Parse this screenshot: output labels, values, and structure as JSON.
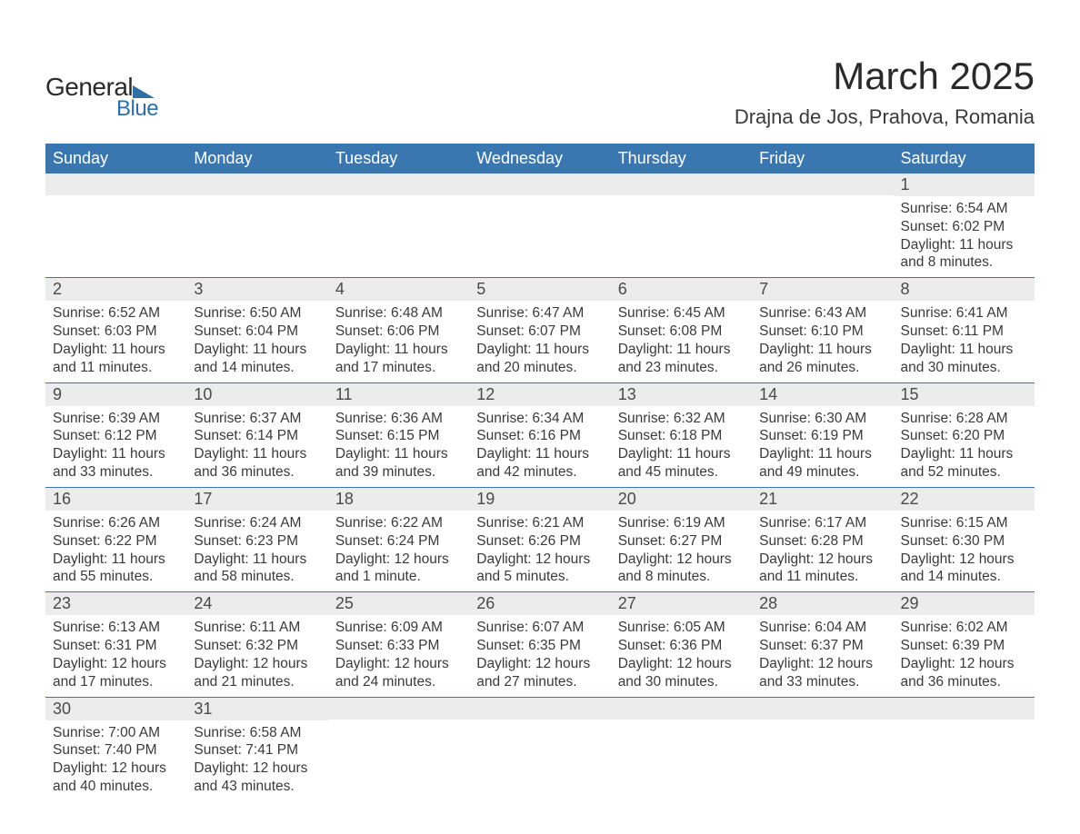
{
  "brand": {
    "text1": "General",
    "text2": "Blue",
    "accent_color": "#2f6fa8"
  },
  "title": "March 2025",
  "location": "Drajna de Jos, Prahova, Romania",
  "header_bg": "#3a77b0",
  "daynum_bg": "#ececec",
  "text_color": "#3a3a3a",
  "columns": [
    "Sunday",
    "Monday",
    "Tuesday",
    "Wednesday",
    "Thursday",
    "Friday",
    "Saturday"
  ],
  "weeks": [
    [
      {
        "n": "",
        "lines": []
      },
      {
        "n": "",
        "lines": []
      },
      {
        "n": "",
        "lines": []
      },
      {
        "n": "",
        "lines": []
      },
      {
        "n": "",
        "lines": []
      },
      {
        "n": "",
        "lines": []
      },
      {
        "n": "1",
        "lines": [
          "Sunrise: 6:54 AM",
          "Sunset: 6:02 PM",
          "Daylight: 11 hours and 8 minutes."
        ]
      }
    ],
    [
      {
        "n": "2",
        "lines": [
          "Sunrise: 6:52 AM",
          "Sunset: 6:03 PM",
          "Daylight: 11 hours and 11 minutes."
        ]
      },
      {
        "n": "3",
        "lines": [
          "Sunrise: 6:50 AM",
          "Sunset: 6:04 PM",
          "Daylight: 11 hours and 14 minutes."
        ]
      },
      {
        "n": "4",
        "lines": [
          "Sunrise: 6:48 AM",
          "Sunset: 6:06 PM",
          "Daylight: 11 hours and 17 minutes."
        ]
      },
      {
        "n": "5",
        "lines": [
          "Sunrise: 6:47 AM",
          "Sunset: 6:07 PM",
          "Daylight: 11 hours and 20 minutes."
        ]
      },
      {
        "n": "6",
        "lines": [
          "Sunrise: 6:45 AM",
          "Sunset: 6:08 PM",
          "Daylight: 11 hours and 23 minutes."
        ]
      },
      {
        "n": "7",
        "lines": [
          "Sunrise: 6:43 AM",
          "Sunset: 6:10 PM",
          "Daylight: 11 hours and 26 minutes."
        ]
      },
      {
        "n": "8",
        "lines": [
          "Sunrise: 6:41 AM",
          "Sunset: 6:11 PM",
          "Daylight: 11 hours and 30 minutes."
        ]
      }
    ],
    [
      {
        "n": "9",
        "lines": [
          "Sunrise: 6:39 AM",
          "Sunset: 6:12 PM",
          "Daylight: 11 hours and 33 minutes."
        ]
      },
      {
        "n": "10",
        "lines": [
          "Sunrise: 6:37 AM",
          "Sunset: 6:14 PM",
          "Daylight: 11 hours and 36 minutes."
        ]
      },
      {
        "n": "11",
        "lines": [
          "Sunrise: 6:36 AM",
          "Sunset: 6:15 PM",
          "Daylight: 11 hours and 39 minutes."
        ]
      },
      {
        "n": "12",
        "lines": [
          "Sunrise: 6:34 AM",
          "Sunset: 6:16 PM",
          "Daylight: 11 hours and 42 minutes."
        ]
      },
      {
        "n": "13",
        "lines": [
          "Sunrise: 6:32 AM",
          "Sunset: 6:18 PM",
          "Daylight: 11 hours and 45 minutes."
        ]
      },
      {
        "n": "14",
        "lines": [
          "Sunrise: 6:30 AM",
          "Sunset: 6:19 PM",
          "Daylight: 11 hours and 49 minutes."
        ]
      },
      {
        "n": "15",
        "lines": [
          "Sunrise: 6:28 AM",
          "Sunset: 6:20 PM",
          "Daylight: 11 hours and 52 minutes."
        ]
      }
    ],
    [
      {
        "n": "16",
        "lines": [
          "Sunrise: 6:26 AM",
          "Sunset: 6:22 PM",
          "Daylight: 11 hours and 55 minutes."
        ]
      },
      {
        "n": "17",
        "lines": [
          "Sunrise: 6:24 AM",
          "Sunset: 6:23 PM",
          "Daylight: 11 hours and 58 minutes."
        ]
      },
      {
        "n": "18",
        "lines": [
          "Sunrise: 6:22 AM",
          "Sunset: 6:24 PM",
          "Daylight: 12 hours and 1 minute."
        ]
      },
      {
        "n": "19",
        "lines": [
          "Sunrise: 6:21 AM",
          "Sunset: 6:26 PM",
          "Daylight: 12 hours and 5 minutes."
        ]
      },
      {
        "n": "20",
        "lines": [
          "Sunrise: 6:19 AM",
          "Sunset: 6:27 PM",
          "Daylight: 12 hours and 8 minutes."
        ]
      },
      {
        "n": "21",
        "lines": [
          "Sunrise: 6:17 AM",
          "Sunset: 6:28 PM",
          "Daylight: 12 hours and 11 minutes."
        ]
      },
      {
        "n": "22",
        "lines": [
          "Sunrise: 6:15 AM",
          "Sunset: 6:30 PM",
          "Daylight: 12 hours and 14 minutes."
        ]
      }
    ],
    [
      {
        "n": "23",
        "lines": [
          "Sunrise: 6:13 AM",
          "Sunset: 6:31 PM",
          "Daylight: 12 hours and 17 minutes."
        ]
      },
      {
        "n": "24",
        "lines": [
          "Sunrise: 6:11 AM",
          "Sunset: 6:32 PM",
          "Daylight: 12 hours and 21 minutes."
        ]
      },
      {
        "n": "25",
        "lines": [
          "Sunrise: 6:09 AM",
          "Sunset: 6:33 PM",
          "Daylight: 12 hours and 24 minutes."
        ]
      },
      {
        "n": "26",
        "lines": [
          "Sunrise: 6:07 AM",
          "Sunset: 6:35 PM",
          "Daylight: 12 hours and 27 minutes."
        ]
      },
      {
        "n": "27",
        "lines": [
          "Sunrise: 6:05 AM",
          "Sunset: 6:36 PM",
          "Daylight: 12 hours and 30 minutes."
        ]
      },
      {
        "n": "28",
        "lines": [
          "Sunrise: 6:04 AM",
          "Sunset: 6:37 PM",
          "Daylight: 12 hours and 33 minutes."
        ]
      },
      {
        "n": "29",
        "lines": [
          "Sunrise: 6:02 AM",
          "Sunset: 6:39 PM",
          "Daylight: 12 hours and 36 minutes."
        ]
      }
    ],
    [
      {
        "n": "30",
        "lines": [
          "Sunrise: 7:00 AM",
          "Sunset: 7:40 PM",
          "Daylight: 12 hours and 40 minutes."
        ]
      },
      {
        "n": "31",
        "lines": [
          "Sunrise: 6:58 AM",
          "Sunset: 7:41 PM",
          "Daylight: 12 hours and 43 minutes."
        ]
      },
      {
        "n": "",
        "lines": []
      },
      {
        "n": "",
        "lines": []
      },
      {
        "n": "",
        "lines": []
      },
      {
        "n": "",
        "lines": []
      },
      {
        "n": "",
        "lines": []
      }
    ]
  ]
}
